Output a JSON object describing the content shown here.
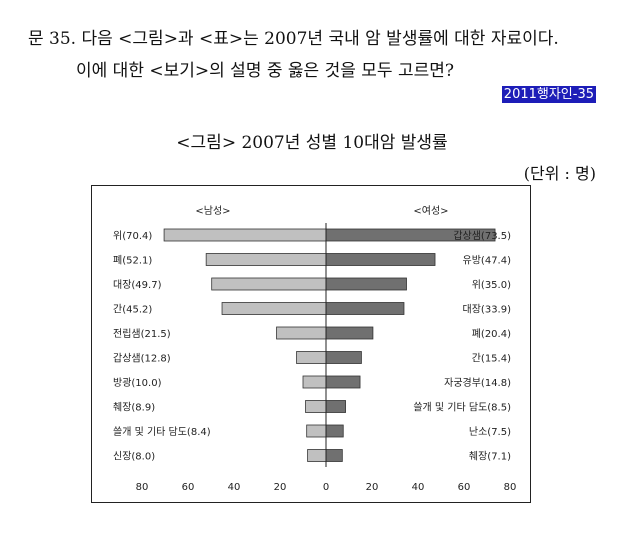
{
  "question": {
    "line1": "문 35. 다음 <그림>과 <표>는 2007년 국내 암 발생률에 대한 자료이다.",
    "line2": "이에 대한 <보기>의 설명 중 옳은 것을 모두 고르면?",
    "source_tag": "2011행자인-35"
  },
  "chart_data": {
    "type": "bar",
    "orientation": "horizontal-butterfly",
    "title": "<그림> 2007년 성별 10대암 발생률",
    "unit": "(단위 : 명)",
    "xlim": [
      -80,
      80
    ],
    "xticks": [
      "80",
      "60",
      "40",
      "20",
      "0",
      "20",
      "40",
      "60",
      "80"
    ],
    "grid": false,
    "colors": {
      "male": "#c0c0c0",
      "female": "#707070"
    },
    "series": [
      {
        "name": "<남성>",
        "side": "left",
        "labels": [
          "위(70.4)",
          "폐(52.1)",
          "대장(49.7)",
          "간(45.2)",
          "전립샘(21.5)",
          "갑상샘(12.8)",
          "방광(10.0)",
          "췌장(8.9)",
          "쓸개 및 기타 담도(8.4)",
          "신장(8.0)"
        ],
        "values": [
          70.4,
          52.1,
          49.7,
          45.2,
          21.5,
          12.8,
          10.0,
          8.9,
          8.4,
          8.0
        ]
      },
      {
        "name": "<여성>",
        "side": "right",
        "labels": [
          "갑상샘(73.5)",
          "유방(47.4)",
          "위(35.0)",
          "대장(33.9)",
          "폐(20.4)",
          "간(15.4)",
          "자궁경부(14.8)",
          "쓸개 및 기타 담도(8.5)",
          "난소(7.5)",
          "췌장(7.1)"
        ],
        "values": [
          73.5,
          47.4,
          35.0,
          33.9,
          20.4,
          15.4,
          14.8,
          8.5,
          7.5,
          7.1
        ]
      }
    ]
  }
}
